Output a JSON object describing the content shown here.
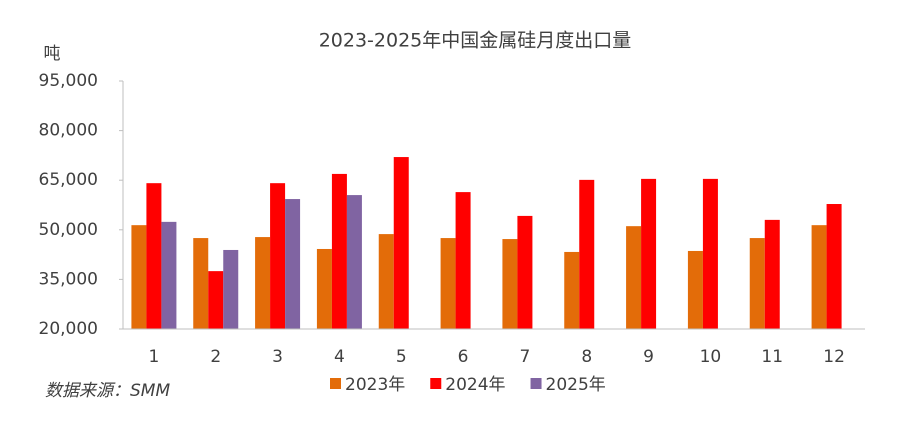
{
  "chart_data": {
    "type": "bar",
    "title": "2023-2025年中国金属硅月度出口量",
    "y_unit": "吨",
    "source": "数据来源：SMM",
    "categories": [
      "1",
      "2",
      "3",
      "4",
      "5",
      "6",
      "7",
      "8",
      "9",
      "10",
      "11",
      "12"
    ],
    "series": [
      {
        "name": "2023年",
        "color": "#E36C09",
        "values": [
          51400,
          47500,
          47800,
          44200,
          48700,
          47500,
          47200,
          43300,
          51100,
          43600,
          47500,
          51400
        ]
      },
      {
        "name": "2024年",
        "color": "#FF0000",
        "values": [
          64100,
          37500,
          64100,
          66900,
          72000,
          61400,
          54200,
          65100,
          65400,
          65400,
          53000,
          57800
        ]
      },
      {
        "name": "2025年",
        "color": "#8064A2",
        "values": [
          52400,
          43900,
          59300,
          60500,
          null,
          null,
          null,
          null,
          null,
          null,
          null,
          null
        ]
      }
    ],
    "ylim": [
      20000,
      95000
    ],
    "yticks": [
      {
        "value": 20000,
        "label": "20,000"
      },
      {
        "value": 35000,
        "label": "35,000"
      },
      {
        "value": 50000,
        "label": "50,000"
      },
      {
        "value": 65000,
        "label": "65,000"
      },
      {
        "value": 80000,
        "label": "80,000"
      },
      {
        "value": 95000,
        "label": "95,000"
      }
    ],
    "grid": false
  }
}
